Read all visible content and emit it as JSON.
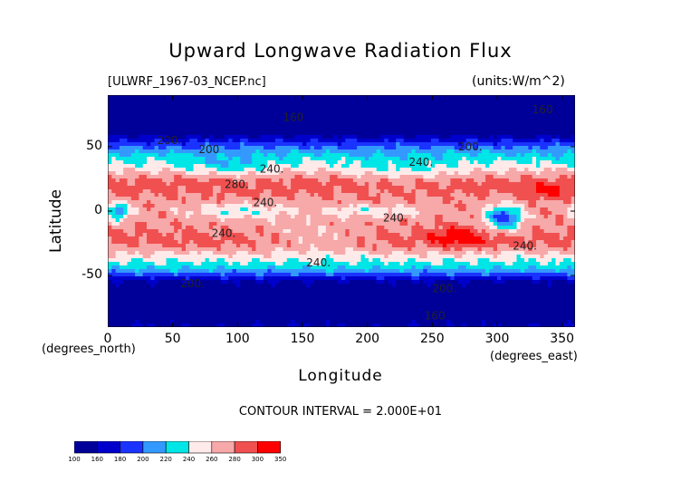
{
  "chart_data": {
    "type": "heatmap",
    "title": "Upward Longwave Radiation Flux",
    "subtitle_left": "[ULWRF_1967-03_NCEP.nc]",
    "subtitle_right": "(units:W/m^2)",
    "xlabel": "Longitude",
    "ylabel": "Latitude",
    "x_unit_label": "(degrees_east)",
    "y_unit_label": "(degrees_north)",
    "xlim": [
      0,
      360
    ],
    "ylim": [
      -90,
      90
    ],
    "x_ticks": [
      0,
      50,
      100,
      150,
      200,
      250,
      300,
      350
    ],
    "y_ticks": [
      -50,
      0,
      50
    ],
    "footer": "CONTOUR INTERVAL = 2.000E+01",
    "contour_interval": 20,
    "contour_labels": [
      {
        "lon": 135,
        "lat": 70,
        "text": "160"
      },
      {
        "lon": 327,
        "lat": 76,
        "text": "160"
      },
      {
        "lon": 38,
        "lat": 52,
        "text": "200."
      },
      {
        "lon": 270,
        "lat": 47,
        "text": "200."
      },
      {
        "lon": 70,
        "lat": 45,
        "text": "200"
      },
      {
        "lon": 232,
        "lat": 35,
        "text": "240."
      },
      {
        "lon": 117,
        "lat": 30,
        "text": "240."
      },
      {
        "lon": 90,
        "lat": 18,
        "text": "280."
      },
      {
        "lon": 112,
        "lat": 4,
        "text": "240."
      },
      {
        "lon": 212,
        "lat": -8,
        "text": "240."
      },
      {
        "lon": 80,
        "lat": -20,
        "text": "240."
      },
      {
        "lon": 312,
        "lat": -30,
        "text": "240."
      },
      {
        "lon": 153,
        "lat": -43,
        "text": "240."
      },
      {
        "lon": 56,
        "lat": -59,
        "text": "200."
      },
      {
        "lon": 250,
        "lat": -63,
        "text": "200."
      },
      {
        "lon": 244,
        "lat": -84,
        "text": "160"
      }
    ],
    "colorbar": {
      "levels": [
        "100",
        "160",
        "180",
        "200",
        "220",
        "240",
        "260",
        "280",
        "300",
        "350"
      ],
      "colors": [
        "#000099",
        "#0000cc",
        "#1a33ff",
        "#3399ff",
        "#00e5e5",
        "#ffeaea",
        "#f7a8a8",
        "#f05050",
        "#ff0000"
      ]
    },
    "field_features": [
      {
        "kind": "band",
        "lat": 70,
        "amp": -70,
        "width": 18
      },
      {
        "kind": "band",
        "lat": -72,
        "amp": -60,
        "width": 12
      },
      {
        "kind": "band",
        "lat": -55,
        "amp": -45,
        "width": 8
      },
      {
        "kind": "band",
        "lat": 22,
        "amp": 25,
        "width": 10
      },
      {
        "kind": "band",
        "lat": -24,
        "amp": 25,
        "width": 10
      },
      {
        "kind": "blob",
        "lon": 8,
        "lat": 0,
        "amp": -70,
        "rlon": 10,
        "rlat": 7
      },
      {
        "kind": "blob",
        "lon": 305,
        "lat": -5,
        "amp": -90,
        "rlon": 14,
        "rlat": 9
      },
      {
        "kind": "blob",
        "lon": 270,
        "lat": -20,
        "amp": 30,
        "rlon": 20,
        "rlat": 8
      },
      {
        "kind": "blob",
        "lon": 340,
        "lat": 15,
        "amp": 25,
        "rlon": 15,
        "rlat": 6
      },
      {
        "kind": "blob",
        "lon": 100,
        "lat": 0,
        "amp": -35,
        "rlon": 40,
        "rlat": 6
      },
      {
        "kind": "blob",
        "lon": 200,
        "lat": 0,
        "amp": -30,
        "rlon": 40,
        "rlat": 5
      },
      {
        "kind": "blob",
        "lon": 230,
        "lat": 30,
        "amp": -20,
        "rlon": 40,
        "rlat": 10
      },
      {
        "kind": "blob",
        "lon": 160,
        "lat": -20,
        "amp": -20,
        "rlon": 40,
        "rlat": 10
      },
      {
        "kind": "blob",
        "lon": 95,
        "lat": 35,
        "amp": -25,
        "rlon": 30,
        "rlat": 8
      }
    ]
  }
}
